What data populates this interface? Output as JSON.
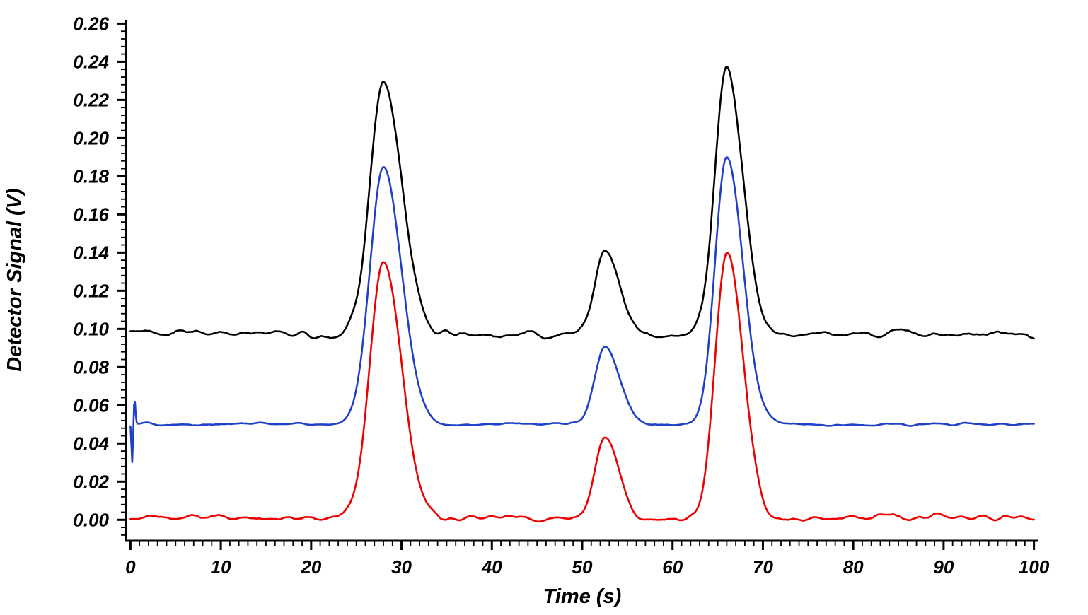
{
  "chart_data": {
    "type": "line",
    "title": "",
    "xlabel": "Time (s)",
    "ylabel": "Detector Signal (V)",
    "xlim": [
      -0.5,
      100.5
    ],
    "ylim": [
      -0.011,
      0.262
    ],
    "x_major_ticks": [
      0,
      10,
      20,
      30,
      40,
      50,
      60,
      70,
      80,
      90,
      100
    ],
    "y_major_ticks": [
      0.0,
      0.02,
      0.04,
      0.06,
      0.08,
      0.1,
      0.12,
      0.14,
      0.16,
      0.18,
      0.2,
      0.22,
      0.24,
      0.26
    ],
    "x_minor_step": 1,
    "y_minor_step": 0.004,
    "grid": false,
    "legend": "none",
    "axis_color": "#000000",
    "frame": "left-and-bottom-only",
    "series": [
      {
        "name": "black-trace",
        "color": "#000000",
        "baseline": 0.097,
        "noise_amplitude": 0.0011,
        "peaks": [
          {
            "time": 28.0,
            "apex_value": 0.231,
            "height_above_baseline": 0.134,
            "sigma_left": 1.5,
            "sigma_right": 2.0
          },
          {
            "time": 52.5,
            "apex_value": 0.14,
            "height_above_baseline": 0.043,
            "sigma_left": 1.1,
            "sigma_right": 1.6
          },
          {
            "time": 66.0,
            "apex_value": 0.236,
            "height_above_baseline": 0.139,
            "sigma_left": 1.3,
            "sigma_right": 1.8
          }
        ]
      },
      {
        "name": "blue-trace",
        "color": "#2040c8",
        "baseline": 0.05,
        "noise_amplitude": 0.0004,
        "start_artifact": [
          {
            "time": 0.2,
            "height": -0.021,
            "sigma": 0.09
          },
          {
            "time": 0.45,
            "height": 0.013,
            "sigma": 0.1
          }
        ],
        "peaks": [
          {
            "time": 28.0,
            "apex_value": 0.185,
            "height_above_baseline": 0.135,
            "sigma_left": 1.5,
            "sigma_right": 2.0
          },
          {
            "time": 52.5,
            "apex_value": 0.091,
            "height_above_baseline": 0.041,
            "sigma_left": 1.1,
            "sigma_right": 1.6
          },
          {
            "time": 66.0,
            "apex_value": 0.19,
            "height_above_baseline": 0.14,
            "sigma_left": 1.3,
            "sigma_right": 1.8
          }
        ]
      },
      {
        "name": "red-trace",
        "color": "#ee0000",
        "baseline": 0.001,
        "noise_amplitude": 0.0009,
        "peaks": [
          {
            "time": 28.0,
            "apex_value": 0.135,
            "height_above_baseline": 0.134,
            "sigma_left": 1.5,
            "sigma_right": 2.0
          },
          {
            "time": 52.5,
            "apex_value": 0.042,
            "height_above_baseline": 0.041,
            "sigma_left": 1.1,
            "sigma_right": 1.6
          },
          {
            "time": 66.0,
            "apex_value": 0.14,
            "height_above_baseline": 0.139,
            "sigma_left": 1.3,
            "sigma_right": 1.8
          }
        ]
      }
    ]
  }
}
